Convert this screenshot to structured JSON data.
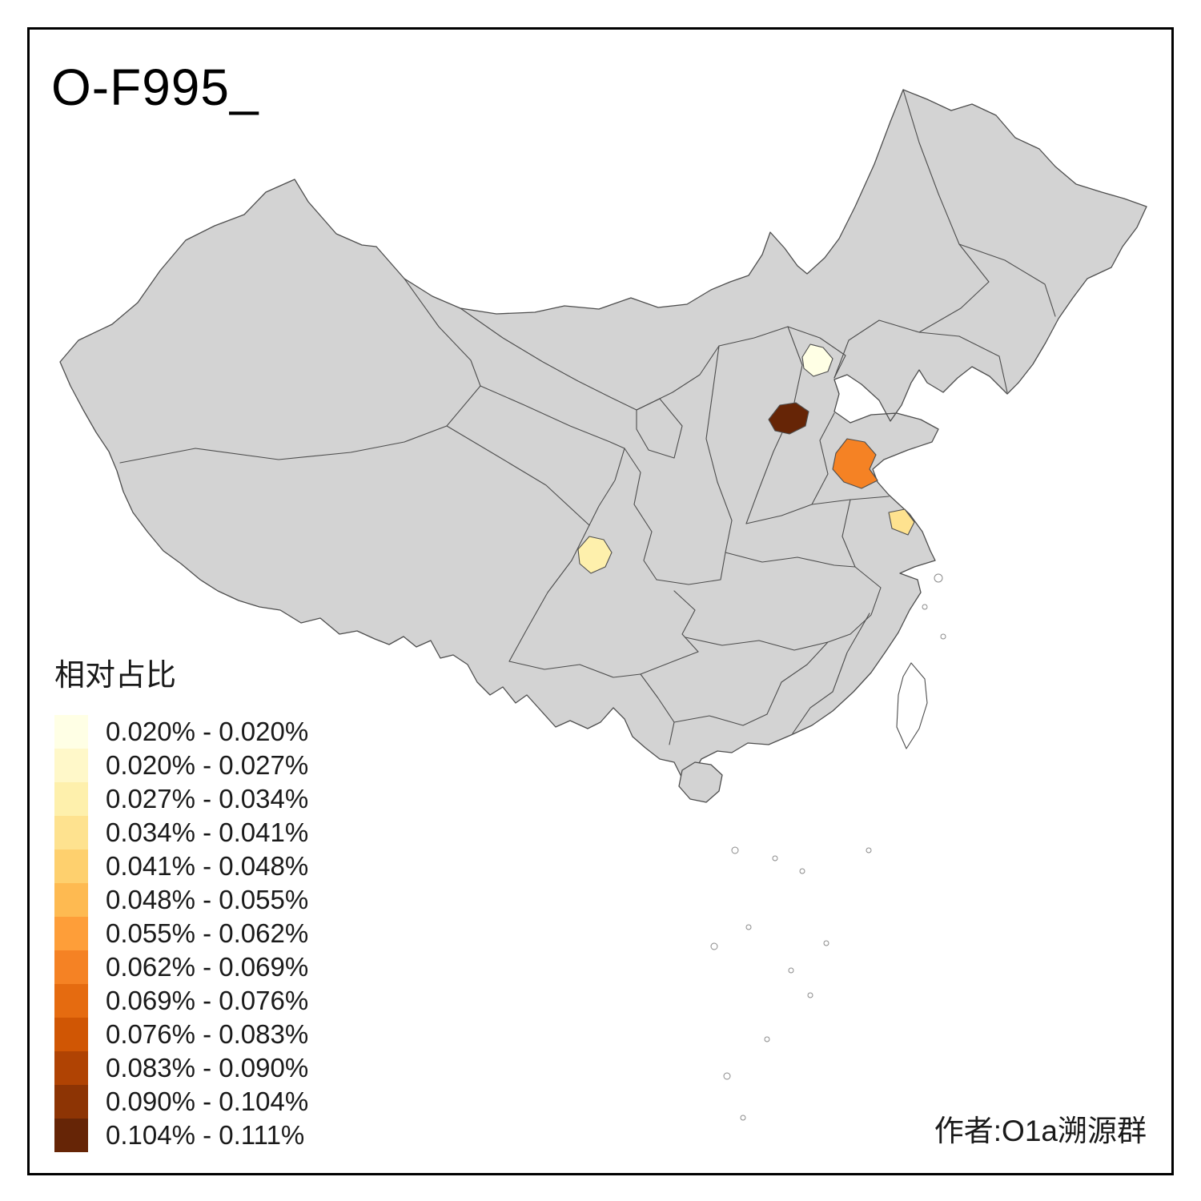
{
  "title": "O-F995_",
  "author": "作者:O1a溯源群",
  "legend": {
    "title": "相对占比",
    "entries": [
      {
        "label": "0.020% - 0.020%",
        "color": "#FFFFE5"
      },
      {
        "label": "0.020% - 0.027%",
        "color": "#FFF8C9"
      },
      {
        "label": "0.027% - 0.034%",
        "color": "#FEF0AC"
      },
      {
        "label": "0.034% - 0.041%",
        "color": "#FEE28F"
      },
      {
        "label": "0.041% - 0.048%",
        "color": "#FED06E"
      },
      {
        "label": "0.048% - 0.055%",
        "color": "#FEBA51"
      },
      {
        "label": "0.055% - 0.062%",
        "color": "#FE9E39"
      },
      {
        "label": "0.062% - 0.069%",
        "color": "#F58224"
      },
      {
        "label": "0.069% - 0.076%",
        "color": "#E56B10"
      },
      {
        "label": "0.076% - 0.083%",
        "color": "#D05604"
      },
      {
        "label": "0.083% - 0.090%",
        "color": "#B04303"
      },
      {
        "label": "0.090% - 0.104%",
        "color": "#8D3404"
      },
      {
        "label": "0.104% - 0.111%",
        "color": "#662506"
      }
    ]
  },
  "map": {
    "base_fill": "#D3D3D3",
    "boundary_color": "#4D4D4D",
    "regions": [
      {
        "color": "#FFFFE5"
      },
      {
        "color": "#662506"
      },
      {
        "color": "#F58224"
      },
      {
        "color": "#FEE28F"
      },
      {
        "color": "#FEF0AC"
      }
    ]
  }
}
